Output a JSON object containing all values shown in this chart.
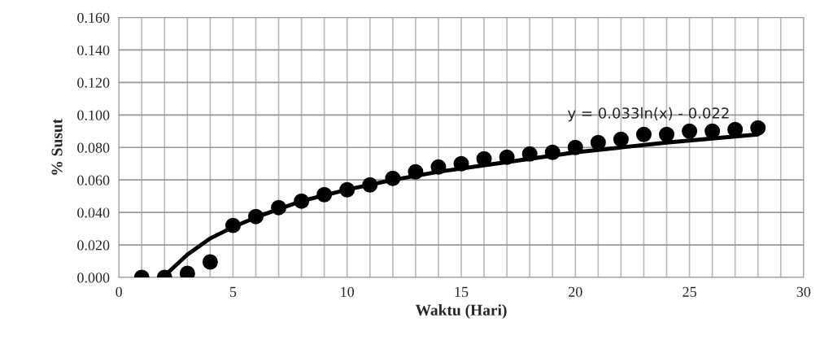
{
  "chart_data": {
    "type": "scatter",
    "xlabel": "Waktu (Hari)",
    "ylabel": "% Susut",
    "series": [
      {
        "type": "scatter",
        "color": "#000000",
        "marker": "circle",
        "x": [
          1,
          2,
          3,
          4,
          5,
          6,
          7,
          8,
          9,
          10,
          11,
          12,
          13,
          14,
          15,
          16,
          17,
          18,
          19,
          20,
          21,
          22,
          23,
          24,
          25,
          26,
          27,
          28
        ],
        "values": [
          0.0,
          0.0,
          0.0025,
          0.0095,
          0.032,
          0.0375,
          0.043,
          0.047,
          0.051,
          0.054,
          0.057,
          0.061,
          0.065,
          0.068,
          0.07,
          0.073,
          0.074,
          0.076,
          0.077,
          0.08,
          0.083,
          0.085,
          0.088,
          0.088,
          0.09,
          0.09,
          0.091,
          0.092
        ]
      },
      {
        "type": "line",
        "color": "#000000",
        "marker": "none",
        "line_style": "solid",
        "x": [
          2,
          3,
          4,
          5,
          6,
          7,
          8,
          10,
          12,
          14,
          17,
          20,
          24,
          28
        ],
        "values": [
          0.001,
          0.014,
          0.024,
          0.031,
          0.037,
          0.042,
          0.047,
          0.054,
          0.06,
          0.065,
          0.071,
          0.077,
          0.083,
          0.088
        ]
      }
    ],
    "annotations": [
      "y = 0.033ln(x) - 0.022"
    ],
    "xlim": [
      0,
      30
    ],
    "xticks": [
      0,
      5,
      10,
      15,
      20,
      25,
      30
    ],
    "ylim": [
      0,
      0.16
    ],
    "yticks": [
      {
        "value": 0,
        "label": "0.000"
      },
      {
        "value": 0.02,
        "label": "0.020"
      },
      {
        "value": 0.04,
        "label": "0.040"
      },
      {
        "value": 0.06,
        "label": "0.060"
      },
      {
        "value": 0.08,
        "label": "0.080"
      },
      {
        "value": 0.1,
        "label": "0.100"
      },
      {
        "value": 0.12,
        "label": "0.120"
      },
      {
        "value": 0.14,
        "label": "0.140"
      },
      {
        "value": 0.16,
        "label": "0.160"
      }
    ],
    "grid": true,
    "legend": false
  }
}
